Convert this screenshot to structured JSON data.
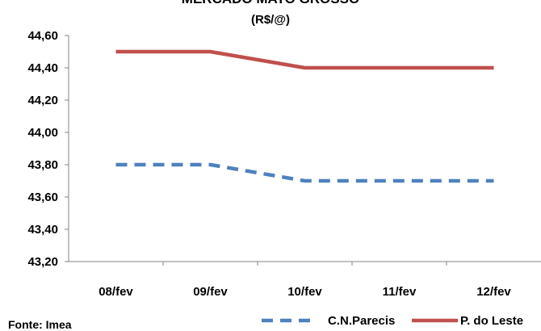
{
  "chart_data": {
    "type": "line",
    "title": "MERCADO MATO GROSSO",
    "subtitle": "(R$/@)",
    "categories": [
      "08/fev",
      "09/fev",
      "10/fev",
      "11/fev",
      "12/fev"
    ],
    "series": [
      {
        "name": "C.N.Parecis",
        "values": [
          43.8,
          43.8,
          43.7,
          43.7,
          43.7
        ],
        "color": "#4F81BD",
        "style": "dashed"
      },
      {
        "name": "P. do Leste",
        "values": [
          44.5,
          44.5,
          44.4,
          44.4,
          44.4
        ],
        "color": "#C0504D",
        "style": "solid"
      }
    ],
    "ylim": [
      43.2,
      44.6
    ],
    "yticks": [
      "43,20",
      "43,40",
      "43,60",
      "43,80",
      "44,00",
      "44,20",
      "44,40",
      "44,60"
    ],
    "grid": false,
    "legend_position": "bottom-right",
    "source": "Fonte: Imea"
  }
}
